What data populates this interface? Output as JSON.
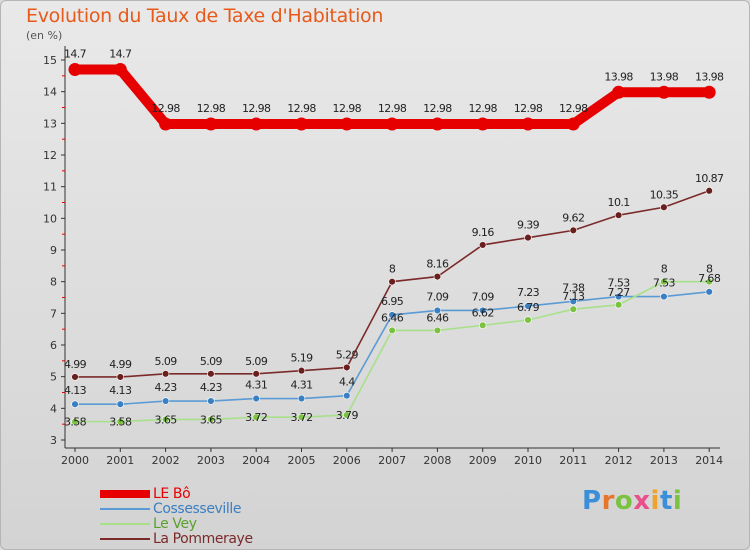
{
  "title": "Evolution du Taux de Taxe d'Habitation",
  "unit": "(en %)",
  "brand": [
    "P",
    "r",
    "o",
    "x",
    "i",
    "t",
    "i"
  ],
  "brand_colors": [
    "#3a8fd8",
    "#e8762a",
    "#7cc242",
    "#e84f8b",
    "#f0a32a",
    "#3a8fd8",
    "#7cc242"
  ],
  "chart_data": {
    "type": "line",
    "title": "Evolution du Taux de Taxe d'Habitation",
    "ylabel": "(en %)",
    "xlabel": "",
    "x": [
      "2000",
      "2001",
      "2002",
      "2003",
      "2004",
      "2005",
      "2006",
      "2007",
      "2008",
      "2009",
      "2010",
      "2011",
      "2012",
      "2013",
      "2014"
    ],
    "ylim": [
      3,
      15
    ],
    "yticks": [
      "3",
      "4",
      "5",
      "6",
      "7",
      "8",
      "9",
      "10",
      "11",
      "12",
      "13",
      "14",
      "15"
    ],
    "grid": false,
    "legend_position": "bottom-left",
    "series": [
      {
        "name": "LE Bô",
        "color": "#e60000",
        "thick": true,
        "values": [
          14.7,
          14.7,
          12.98,
          12.98,
          12.98,
          12.98,
          12.98,
          12.98,
          12.98,
          12.98,
          12.98,
          12.98,
          13.98,
          13.98,
          13.98
        ],
        "labels": [
          "14.7",
          "14.7",
          "12.98",
          "12.98",
          "12.98",
          "12.98",
          "12.98",
          "12.98",
          "12.98",
          "12.98",
          "12.98",
          "12.98",
          "13.98",
          "13.98",
          "13.98"
        ]
      },
      {
        "name": "Cossesseville",
        "color": "#5b9bd5",
        "marker": "#3a7fc2",
        "values": [
          4.13,
          4.13,
          4.23,
          4.23,
          4.31,
          4.31,
          4.4,
          6.95,
          7.09,
          7.09,
          7.23,
          7.38,
          7.53,
          7.53,
          7.68
        ],
        "labels": [
          "4.13",
          "4.13",
          "4.23",
          "4.23",
          "4.31",
          "4.31",
          "4.4",
          "6.95",
          "7.09",
          "7.09",
          "7.23",
          "7.38",
          "7.53",
          "7.53",
          "7.68"
        ]
      },
      {
        "name": "Le Vey",
        "color": "#a8e08a",
        "marker": "#7cc242",
        "values": [
          3.58,
          3.58,
          3.65,
          3.65,
          3.72,
          3.72,
          3.79,
          6.46,
          6.46,
          6.62,
          6.79,
          7.13,
          7.27,
          8,
          8
        ],
        "labels": [
          "3.58",
          "3.58",
          "3.65",
          "3.65",
          "3.72",
          "3.72",
          "3.79",
          "6.46",
          "6.46",
          "6.62",
          "6.79",
          "7.13",
          "7.27",
          "8",
          "8"
        ]
      },
      {
        "name": "La Pommeraye",
        "color": "#7b2a2a",
        "marker": "#6a1f1f",
        "values": [
          4.99,
          4.99,
          5.09,
          5.09,
          5.09,
          5.19,
          5.29,
          8,
          8.16,
          9.16,
          9.39,
          9.62,
          10.1,
          10.35,
          10.87
        ],
        "labels": [
          "4.99",
          "4.99",
          "5.09",
          "5.09",
          "5.09",
          "5.19",
          "5.29",
          "8",
          "8.16",
          "9.16",
          "9.39",
          "9.62",
          "10.1",
          "10.35",
          "10.87"
        ]
      }
    ]
  }
}
